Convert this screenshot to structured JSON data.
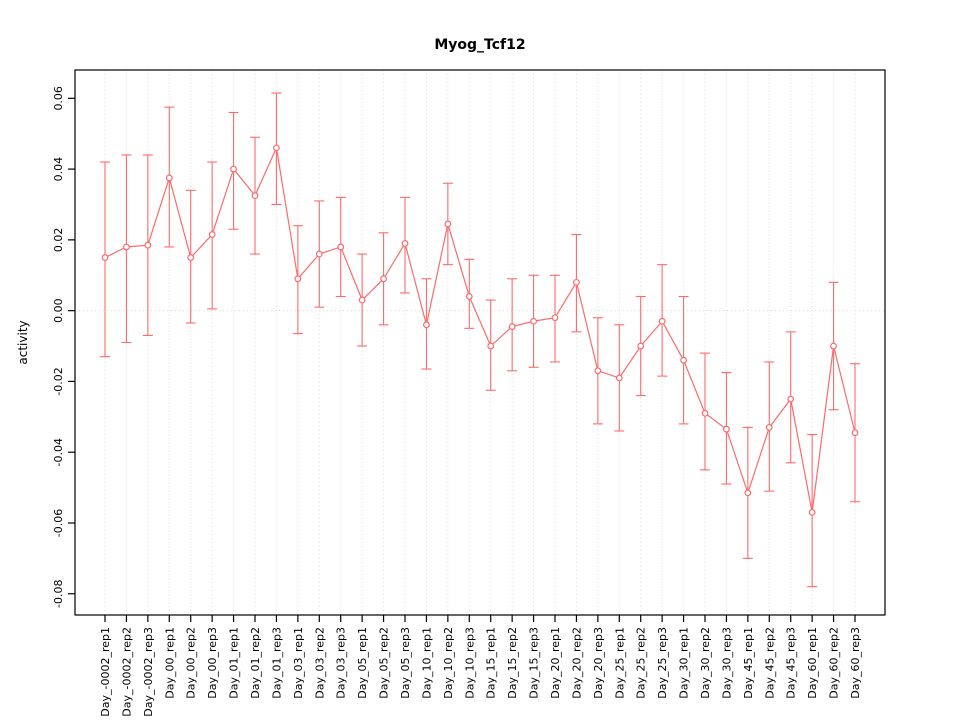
{
  "chart_data": {
    "type": "line",
    "title": "Myog_Tcf12",
    "xlabel": "",
    "ylabel": "activity",
    "legend": "none",
    "point_style": "open-circle",
    "error_bars": true,
    "grid": "dotted vertical line at each category; dotted horizontal line at y=0",
    "color": "#ff6a6a",
    "grid_color": "#d9d9d9",
    "axis_color": "#000000",
    "x_range": [
      -0.4,
      37.4
    ],
    "y_range": [
      -0.086,
      0.068
    ],
    "yticks": [
      -0.08,
      -0.06,
      -0.04,
      -0.02,
      0.0,
      0.02,
      0.04,
      0.06
    ],
    "ytick_labels": [
      "-0.08",
      "-0.06",
      "-0.04",
      "-0.02",
      "0.00",
      "0.02",
      "0.04",
      "0.06"
    ],
    "categories": [
      "Day_-0002_rep1",
      "Day_-0002_rep2",
      "Day_-0002_rep3",
      "Day_00_rep1",
      "Day_00_rep2",
      "Day_00_rep3",
      "Day_01_rep1",
      "Day_01_rep2",
      "Day_01_rep3",
      "Day_03_rep1",
      "Day_03_rep2",
      "Day_03_rep3",
      "Day_05_rep1",
      "Day_05_rep2",
      "Day_05_rep3",
      "Day_10_rep1",
      "Day_10_rep2",
      "Day_10_rep3",
      "Day_15_rep1",
      "Day_15_rep2",
      "Day_15_rep3",
      "Day_20_rep1",
      "Day_20_rep2",
      "Day_20_rep3",
      "Day_25_rep1",
      "Day_25_rep2",
      "Day_25_rep3",
      "Day_30_rep1",
      "Day_30_rep2",
      "Day_30_rep3",
      "Day_45_rep1",
      "Day_45_rep2",
      "Day_45_rep3",
      "Day_60_rep1",
      "Day_60_rep2",
      "Day_60_rep3"
    ],
    "series": [
      {
        "name": "activity",
        "values": [
          0.015,
          0.018,
          0.0185,
          0.0375,
          0.015,
          0.0215,
          0.04,
          0.0325,
          0.046,
          0.009,
          0.016,
          0.018,
          0.003,
          0.009,
          0.019,
          -0.004,
          0.0245,
          0.004,
          -0.01,
          -0.0045,
          -0.003,
          -0.002,
          0.008,
          -0.017,
          -0.019,
          -0.01,
          -0.003,
          -0.014,
          -0.029,
          -0.0335,
          -0.0515,
          -0.033,
          -0.025,
          -0.057,
          -0.01,
          -0.0345
        ],
        "upper": [
          0.042,
          0.044,
          0.044,
          0.0575,
          0.034,
          0.042,
          0.056,
          0.049,
          0.0615,
          0.024,
          0.031,
          0.032,
          0.016,
          0.022,
          0.032,
          0.009,
          0.036,
          0.0145,
          0.003,
          0.009,
          0.01,
          0.01,
          0.0215,
          -0.002,
          -0.004,
          0.004,
          0.013,
          0.004,
          -0.012,
          -0.0175,
          -0.033,
          -0.0145,
          -0.006,
          -0.035,
          0.008,
          -0.015
        ],
        "lower": [
          -0.013,
          -0.009,
          -0.007,
          0.018,
          -0.0035,
          0.0005,
          0.023,
          0.016,
          0.03,
          -0.0065,
          0.001,
          0.004,
          -0.01,
          -0.004,
          0.005,
          -0.0165,
          0.013,
          -0.005,
          -0.0225,
          -0.017,
          -0.016,
          -0.0145,
          -0.006,
          -0.032,
          -0.034,
          -0.024,
          -0.0185,
          -0.032,
          -0.045,
          -0.049,
          -0.07,
          -0.051,
          -0.043,
          -0.078,
          -0.028,
          -0.054
        ]
      }
    ]
  }
}
